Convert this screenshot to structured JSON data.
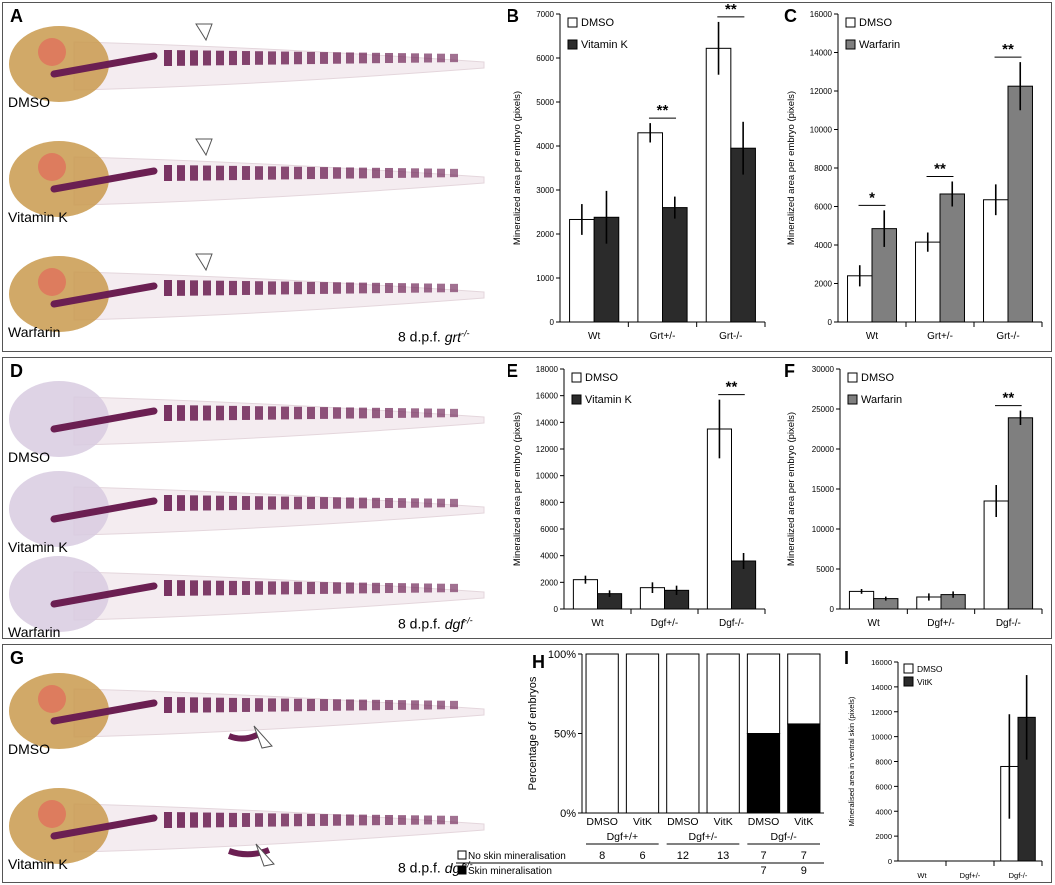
{
  "rows": [
    {
      "photo_panel": "A",
      "treatments": [
        "DMSO",
        "Vitamin K",
        "Warfarin"
      ],
      "stage_prefix": "8 d.p.f. ",
      "stage_genotype": "grt",
      "stage_sup": "-/-"
    },
    {
      "photo_panel": "D",
      "treatments": [
        "DMSO",
        "Vitamin K",
        "Warfarin"
      ],
      "stage_prefix": "8 d.p.f. ",
      "stage_genotype": "dgf",
      "stage_sup": "-/-"
    },
    {
      "photo_panel": "G",
      "treatments": [
        "DMSO",
        "Vitamin K"
      ],
      "stage_prefix": "8 d.p.f. ",
      "stage_genotype": "dgf",
      "stage_sup": "-/-"
    }
  ],
  "colors": {
    "white_bar": "#ffffff",
    "dark_bar": "#2b2b2b",
    "gray_bar": "#7f7f7f",
    "black_bar": "#000000",
    "stain": "#6b1f52",
    "head_tissue": "#c99a4e"
  },
  "chart_data": [
    {
      "panel": "B",
      "type": "bar",
      "categories": [
        "Wt",
        "Grt+/-",
        "Grt-/-"
      ],
      "ylabel": "Mineralized area per embryo (pixels)",
      "ylim": [
        0,
        7000
      ],
      "yticks": [
        0,
        1000,
        2000,
        3000,
        4000,
        5000,
        6000,
        7000
      ],
      "legend": "top-left",
      "series": [
        {
          "name": "DMSO",
          "color": "#ffffff",
          "values": [
            2330,
            4300,
            6220
          ],
          "errors": [
            350,
            220,
            600
          ]
        },
        {
          "name": "Vitamin K",
          "color": "#2b2b2b",
          "values": [
            2380,
            2600,
            3950
          ],
          "errors": [
            600,
            250,
            600
          ]
        }
      ],
      "significance": [
        {
          "category": 1,
          "label": "**"
        },
        {
          "category": 2,
          "label": "**"
        }
      ]
    },
    {
      "panel": "C",
      "type": "bar",
      "categories": [
        "Wt",
        "Grt+/-",
        "Grt-/-"
      ],
      "ylabel": "Mineralized area per embryo (pixels)",
      "ylim": [
        0,
        16000
      ],
      "yticks": [
        0,
        2000,
        4000,
        6000,
        8000,
        10000,
        12000,
        14000,
        16000
      ],
      "legend": "top-left",
      "series": [
        {
          "name": "DMSO",
          "color": "#ffffff",
          "values": [
            2400,
            4150,
            6350
          ],
          "errors": [
            550,
            500,
            800
          ]
        },
        {
          "name": "Warfarin",
          "color": "#7f7f7f",
          "values": [
            4850,
            6650,
            12250
          ],
          "errors": [
            950,
            650,
            1250
          ]
        }
      ],
      "significance": [
        {
          "category": 0,
          "label": "*"
        },
        {
          "category": 1,
          "label": "**"
        },
        {
          "category": 2,
          "label": "**"
        }
      ]
    },
    {
      "panel": "E",
      "type": "bar",
      "categories": [
        "Wt",
        "Dgf+/-",
        "Dgf-/-"
      ],
      "ylabel": "Mineralized area per embryo (pixels)",
      "ylim": [
        0,
        18000
      ],
      "yticks": [
        0,
        2000,
        4000,
        6000,
        8000,
        10000,
        12000,
        14000,
        16000,
        18000
      ],
      "legend": "top-left",
      "series": [
        {
          "name": "DMSO",
          "color": "#ffffff",
          "values": [
            2200,
            1600,
            13500
          ],
          "errors": [
            300,
            400,
            2200
          ]
        },
        {
          "name": "Vitamin K",
          "color": "#2b2b2b",
          "values": [
            1150,
            1400,
            3600
          ],
          "errors": [
            250,
            350,
            600
          ]
        }
      ],
      "significance": [
        {
          "category": 2,
          "label": "**"
        }
      ]
    },
    {
      "panel": "F",
      "type": "bar",
      "categories": [
        "Wt",
        "Dgf+/-",
        "Dgf-/-"
      ],
      "ylabel": "Mineralized area per embryo (pixels)",
      "ylim": [
        0,
        30000
      ],
      "yticks": [
        0,
        5000,
        10000,
        15000,
        20000,
        25000,
        30000
      ],
      "legend": "top-left",
      "series": [
        {
          "name": "DMSO",
          "color": "#ffffff",
          "values": [
            2200,
            1500,
            13500
          ],
          "errors": [
            300,
            450,
            2000
          ]
        },
        {
          "name": "Warfarin",
          "color": "#7f7f7f",
          "values": [
            1300,
            1800,
            23900
          ],
          "errors": [
            250,
            400,
            900
          ]
        }
      ],
      "significance": [
        {
          "category": 2,
          "label": "**"
        }
      ]
    },
    {
      "panel": "H",
      "type": "bar",
      "stacked": true,
      "ylabel": "Percentage of embryos",
      "yticks": [
        "0%",
        "50%",
        "100%"
      ],
      "ylim": [
        0,
        100
      ],
      "treatments": [
        "DMSO",
        "VitK",
        "DMSO",
        "VitK",
        "DMSO",
        "VitK"
      ],
      "groups": [
        "Dgf+/+",
        "Dgf+/-",
        "Dgf-/-"
      ],
      "series": [
        {
          "name": "No skin mineralisation",
          "color": "#ffffff",
          "counts": [
            "8",
            "6",
            "12",
            "13",
            "7",
            "7"
          ]
        },
        {
          "name": "Skin mineralisation",
          "color": "#000000",
          "counts": [
            "",
            "",
            "",
            "",
            "7",
            "9"
          ]
        }
      ],
      "skin_percent": [
        0,
        0,
        0,
        0,
        50,
        56
      ]
    },
    {
      "panel": "I",
      "type": "bar",
      "categories": [
        "Wt",
        "Dgf+/-",
        "Dgf-/-"
      ],
      "ylabel": "Mineralised area in ventral skin (pixels)",
      "ylim": [
        0,
        16000
      ],
      "yticks": [
        0,
        2000,
        4000,
        6000,
        8000,
        10000,
        12000,
        14000,
        16000
      ],
      "legend": "top-left",
      "series": [
        {
          "name": "DMSO",
          "color": "#ffffff",
          "values": [
            0,
            0,
            7600
          ],
          "errors": [
            0,
            0,
            4200
          ]
        },
        {
          "name": "VitK",
          "color": "#2b2b2b",
          "values": [
            0,
            0,
            11550
          ],
          "errors": [
            0,
            0,
            3400
          ]
        }
      ],
      "significance": []
    }
  ]
}
